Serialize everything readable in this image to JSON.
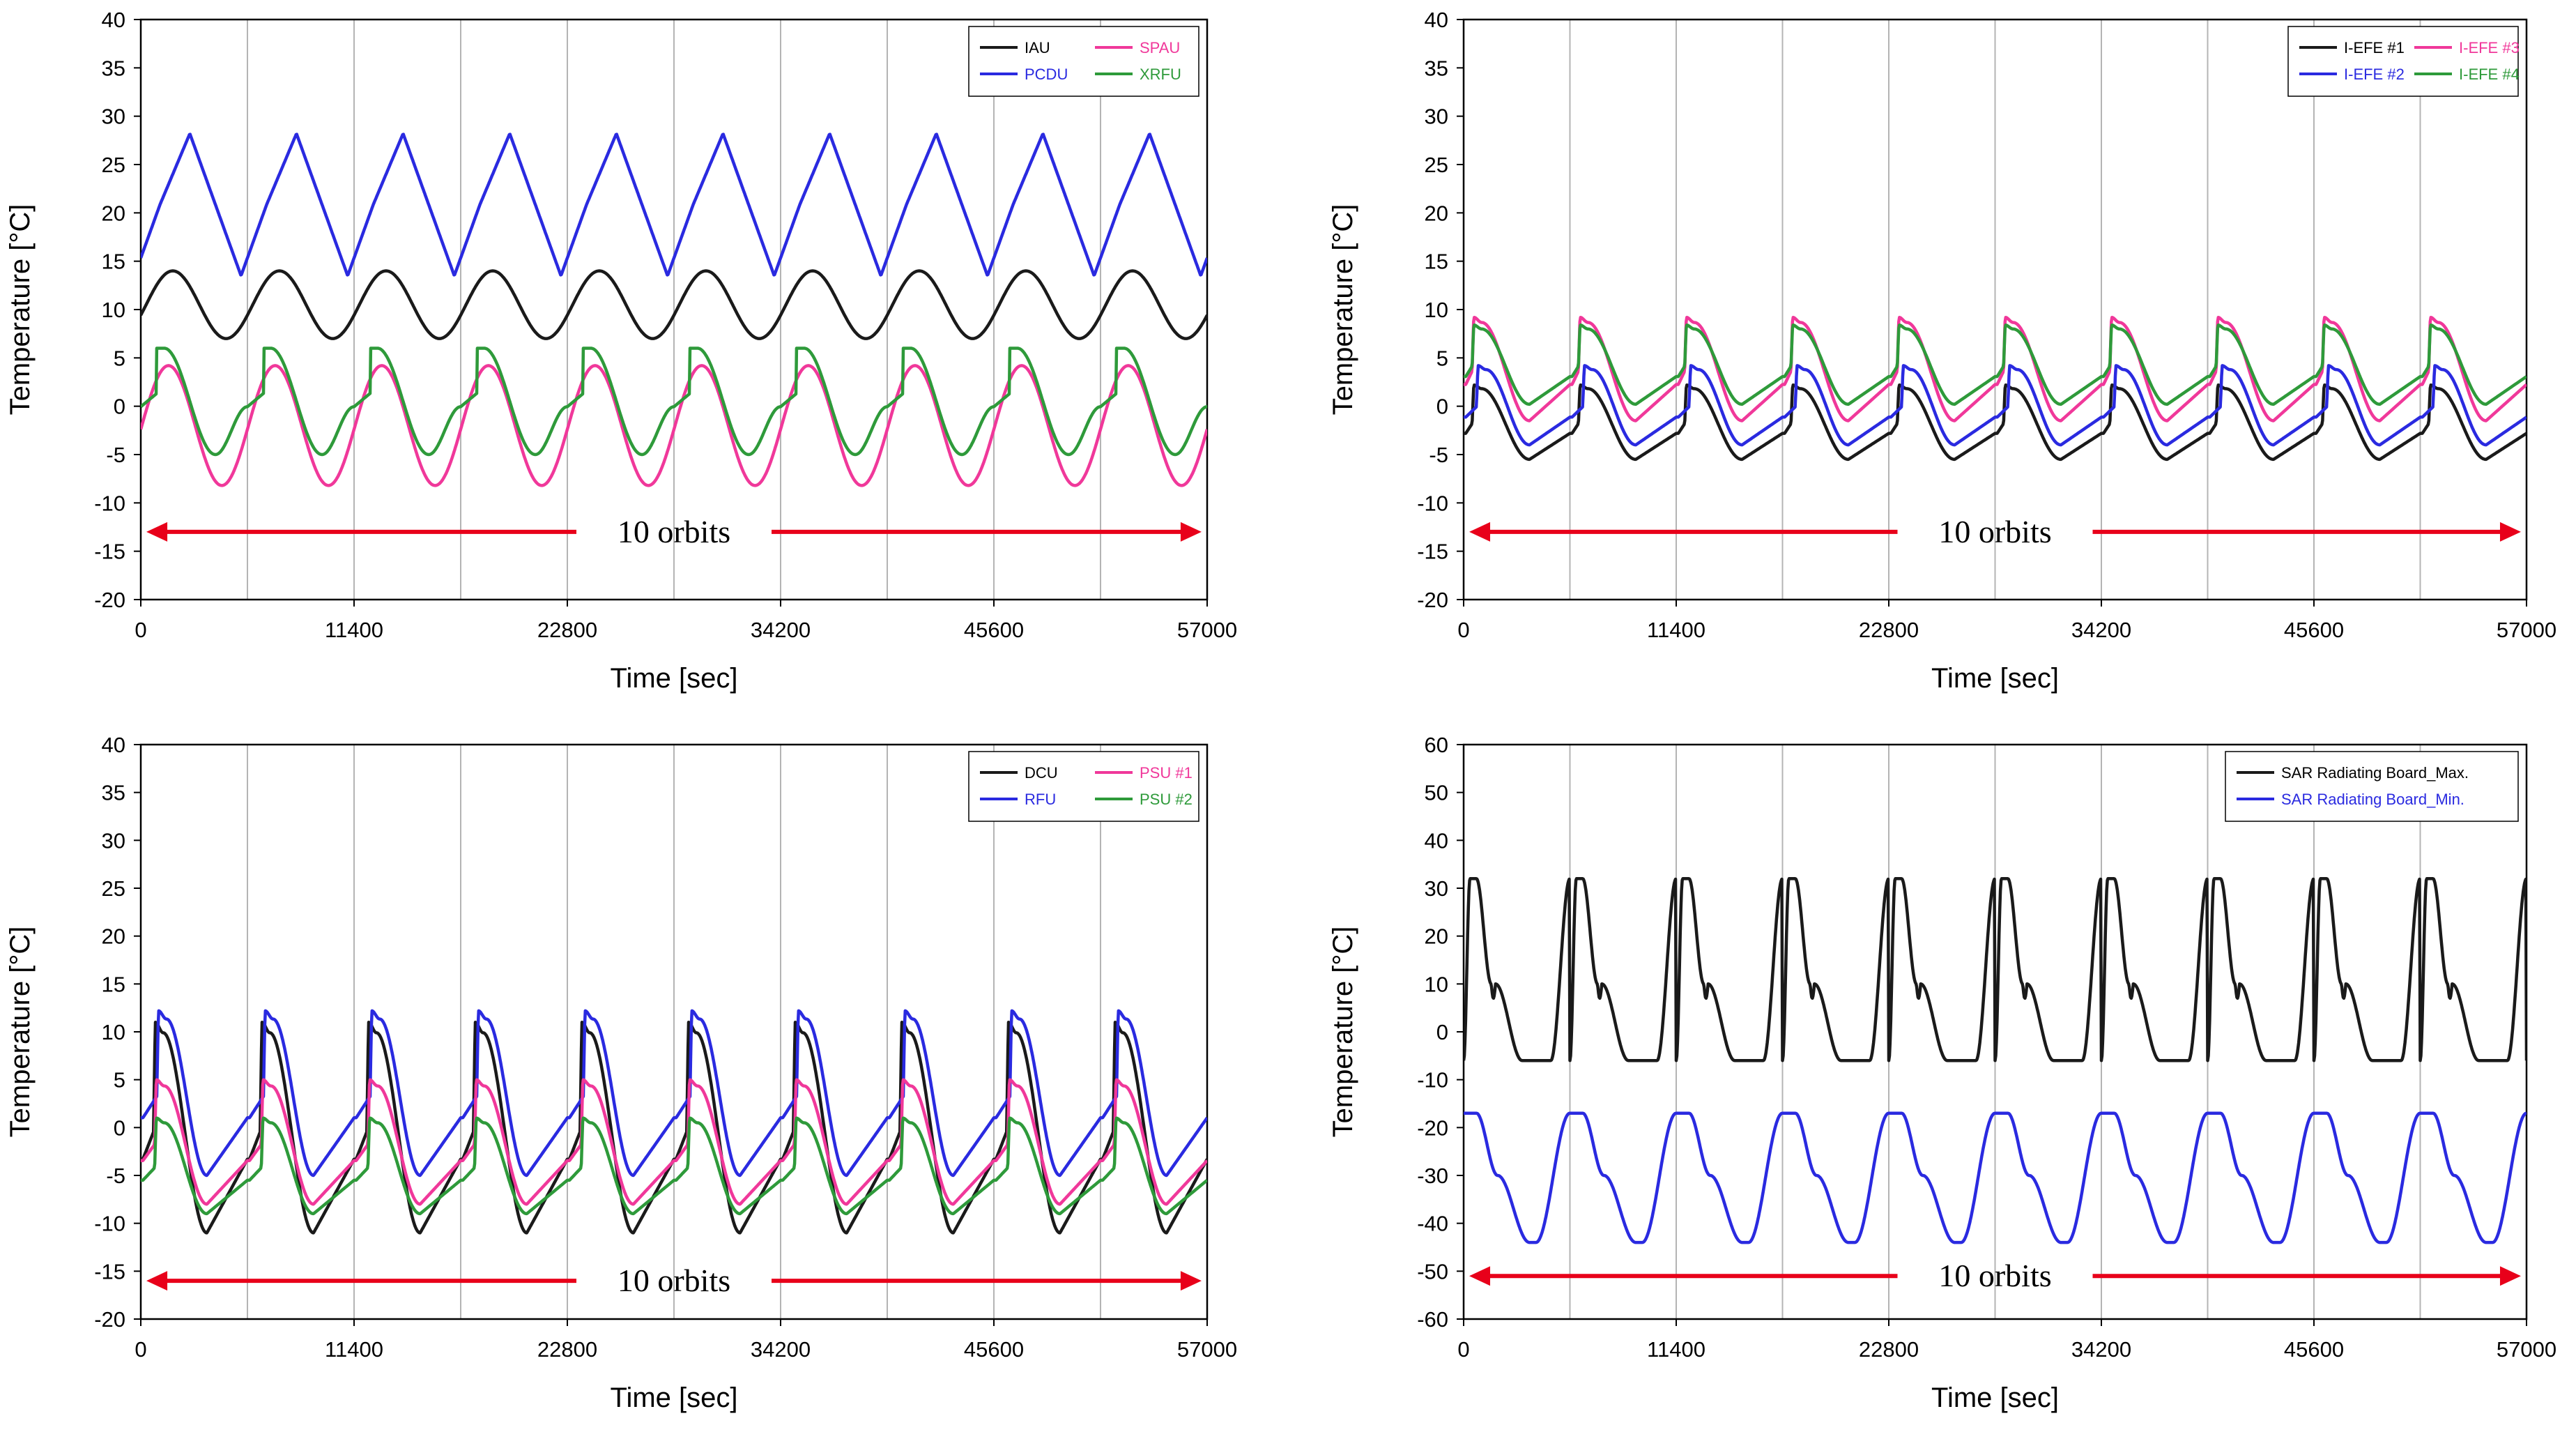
{
  "figure": {
    "colors": {
      "black": "#1a1a1a",
      "blue": "#2a2ae0",
      "pink": "#f0389a",
      "green": "#2e9a3a",
      "arrow": "#e8001a",
      "grid": "#b4b4b4"
    }
  },
  "chart_data": [
    {
      "type": "line",
      "id": "panel-tl",
      "xlabel": "Time [sec]",
      "ylabel": "Temperature [°C]",
      "xlim": [
        0,
        57000
      ],
      "ylim": [
        -20,
        40
      ],
      "xticks": [
        "0",
        "11400",
        "22800",
        "34200",
        "45600",
        "57000"
      ],
      "yticks": [
        "-20",
        "-15",
        "-10",
        "-5",
        "0",
        "5",
        "10",
        "15",
        "20",
        "25",
        "30",
        "35",
        "40"
      ],
      "vgrid_step": 5700,
      "legend": {
        "position": "top-right",
        "columns": 2,
        "entries": [
          "IAU",
          "SPAU",
          "PCDU",
          "XRFU"
        ]
      },
      "annotation": {
        "text": "10 orbits",
        "x_start": 300,
        "x_end": 56700,
        "y": -13
      },
      "period": 5700,
      "series": [
        {
          "name": "IAU",
          "color": "black",
          "kind": "sine",
          "mean": 10.5,
          "amp": 3.5,
          "peak_phase": 0.3,
          "phase_offset": 0.0
        },
        {
          "name": "PCDU",
          "color": "blue",
          "kind": "tri",
          "min": 13.5,
          "max": 28.2,
          "peak_phase": 0.28,
          "phase_offset": 0.82,
          "label_start": 20
        },
        {
          "name": "SPAU",
          "color": "pink",
          "kind": "sine",
          "mean": -2.0,
          "amp": 6.2,
          "peak_phase": 0.26,
          "phase_offset": 0.0
        },
        {
          "name": "XRFU",
          "color": "green",
          "kind": "sawsine",
          "mean": 0.5,
          "amp": 5.5,
          "peak_phase": 0.2,
          "phase_offset": 0.0
        }
      ]
    },
    {
      "type": "line",
      "id": "panel-tr",
      "xlabel": "Time [sec]",
      "ylabel": "Temperature [°C]",
      "xlim": [
        0,
        57000
      ],
      "ylim": [
        -20,
        40
      ],
      "xticks": [
        "0",
        "11400",
        "22800",
        "34200",
        "45600",
        "57000"
      ],
      "yticks": [
        "-20",
        "-15",
        "-10",
        "-5",
        "0",
        "5",
        "10",
        "15",
        "20",
        "25",
        "30",
        "35",
        "40"
      ],
      "vgrid_step": 5700,
      "legend": {
        "position": "top-right",
        "columns": 2,
        "entries": [
          "I-EFE #1",
          "I-EFE #3",
          "I-EFE #2",
          "I-EFE #4"
        ]
      },
      "annotation": {
        "text": "10 orbits",
        "x_start": 300,
        "x_end": 56700,
        "y": -13
      },
      "period": 5700,
      "series": [
        {
          "name": "I-EFE #1",
          "color": "black",
          "kind": "jump",
          "low": -5.5,
          "high": 2.2,
          "jump_phase": 0.08,
          "phase_offset": 0.0
        },
        {
          "name": "I-EFE #3",
          "color": "pink",
          "kind": "jump",
          "low": -1.5,
          "high": 9.2,
          "jump_phase": 0.08,
          "phase_offset": 0.0
        },
        {
          "name": "I-EFE #2",
          "color": "blue",
          "kind": "jump",
          "low": -4.0,
          "high": 4.2,
          "jump_phase": 0.12,
          "phase_offset": 0.0
        },
        {
          "name": "I-EFE #4",
          "color": "green",
          "kind": "jump",
          "low": 0.2,
          "high": 8.4,
          "jump_phase": 0.08,
          "phase_offset": 0.0
        }
      ]
    },
    {
      "type": "line",
      "id": "panel-bl",
      "xlabel": "Time [sec]",
      "ylabel": "Temperature [°C]",
      "xlim": [
        0,
        57000
      ],
      "ylim": [
        -20,
        40
      ],
      "xticks": [
        "0",
        "11400",
        "22800",
        "34200",
        "45600",
        "57000"
      ],
      "yticks": [
        "-20",
        "-15",
        "-10",
        "-5",
        "0",
        "5",
        "10",
        "15",
        "20",
        "25",
        "30",
        "35",
        "40"
      ],
      "vgrid_step": 5700,
      "legend": {
        "position": "top-right",
        "columns": 2,
        "entries": [
          "DCU",
          "PSU #1",
          "RFU",
          "PSU #2"
        ]
      },
      "annotation": {
        "text": "10 orbits",
        "x_start": 300,
        "x_end": 56700,
        "y": -16
      },
      "period": 5700,
      "series": [
        {
          "name": "DCU",
          "color": "black",
          "kind": "jump",
          "low": -11.0,
          "high": 11.0,
          "jump_phase": 0.12,
          "phase_offset": 0.0
        },
        {
          "name": "RFU",
          "color": "blue",
          "kind": "jump",
          "low": -5.0,
          "high": 12.2,
          "jump_phase": 0.15,
          "phase_offset": 0.0
        },
        {
          "name": "PSU #1",
          "color": "pink",
          "kind": "jump",
          "low": -8.0,
          "high": 5.0,
          "jump_phase": 0.13,
          "phase_offset": 0.0
        },
        {
          "name": "PSU #2",
          "color": "green",
          "kind": "jump",
          "low": -9.0,
          "high": 1.0,
          "jump_phase": 0.13,
          "phase_offset": 0.0
        }
      ]
    },
    {
      "type": "line",
      "id": "panel-br",
      "xlabel": "Time [sec]",
      "ylabel": "Temperature [°C]",
      "xlim": [
        0,
        57000
      ],
      "ylim": [
        -60,
        60
      ],
      "xticks": [
        "0",
        "11400",
        "22800",
        "34200",
        "45600",
        "57000"
      ],
      "yticks": [
        "-60",
        "-50",
        "-40",
        "-30",
        "-20",
        "-10",
        "0",
        "10",
        "20",
        "30",
        "40",
        "50",
        "60"
      ],
      "vgrid_step": 5700,
      "legend": {
        "position": "top-right",
        "columns": 1,
        "entries": [
          "SAR Radiating Board_Max.",
          "SAR Radiating Board_Min."
        ]
      },
      "annotation": {
        "text": "10 orbits",
        "x_start": 300,
        "x_end": 56700,
        "y": -51
      },
      "period": 5700,
      "series": [
        {
          "name": "SAR Radiating Board_Max.",
          "color": "black",
          "kind": "sarmax",
          "low": -6.0,
          "high": 32.0,
          "phase_offset": 0.0
        },
        {
          "name": "SAR Radiating Board_Min.",
          "color": "blue",
          "kind": "sarmin",
          "low": -44.0,
          "high": -17.0,
          "phase_offset": 0.0
        }
      ]
    }
  ]
}
